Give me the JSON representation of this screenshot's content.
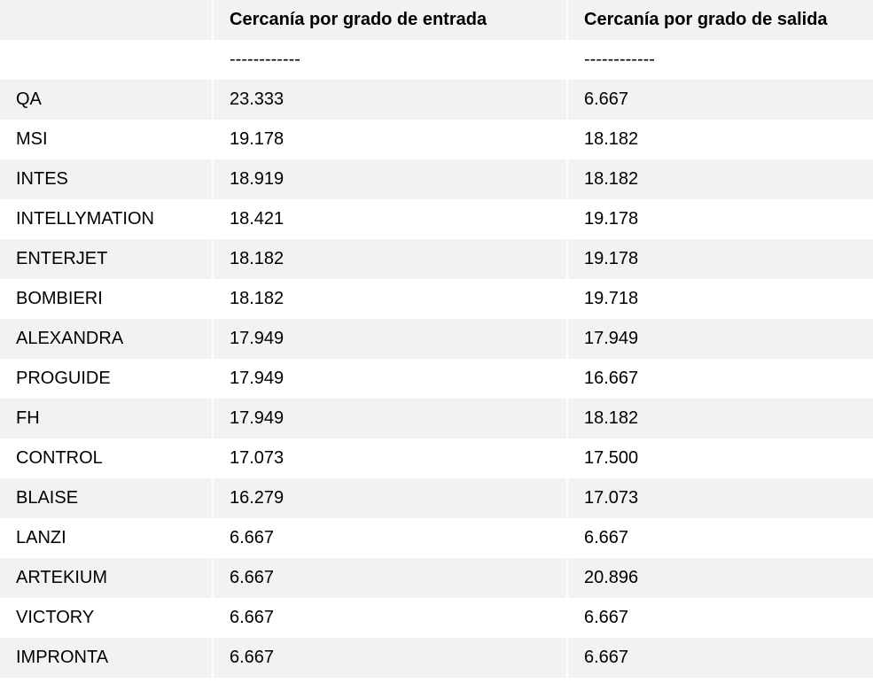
{
  "table": {
    "columns": [
      {
        "label": ""
      },
      {
        "label": "Cercanía por grado de entrada"
      },
      {
        "label": "Cercanía por grado de salida"
      }
    ],
    "separator_row": {
      "name": "",
      "entrada": "------------",
      "salida": "------------"
    },
    "rows": [
      {
        "name": "QA",
        "entrada": "23.333",
        "salida": "6.667"
      },
      {
        "name": "MSI",
        "entrada": "19.178",
        "salida": "18.182"
      },
      {
        "name": "INTES",
        "entrada": "18.919",
        "salida": "18.182"
      },
      {
        "name": "INTELLYMATION",
        "entrada": "18.421",
        "salida": "19.178"
      },
      {
        "name": "ENTERJET",
        "entrada": "18.182",
        "salida": "19.178"
      },
      {
        "name": "BOMBIERI",
        "entrada": "18.182",
        "salida": "19.718"
      },
      {
        "name": "ALEXANDRA",
        "entrada": "17.949",
        "salida": "17.949"
      },
      {
        "name": "PROGUIDE",
        "entrada": "17.949",
        "salida": "16.667"
      },
      {
        "name": "FH",
        "entrada": "17.949",
        "salida": "18.182"
      },
      {
        "name": "CONTROL",
        "entrada": "17.073",
        "salida": "17.500"
      },
      {
        "name": "BLAISE",
        "entrada": "16.279",
        "salida": "17.073"
      },
      {
        "name": "LANZI",
        "entrada": "6.667",
        "salida": "6.667"
      },
      {
        "name": "ARTEKIUM",
        "entrada": "6.667",
        "salida": "20.896"
      },
      {
        "name": "VICTORY",
        "entrada": "6.667",
        "salida": "6.667"
      },
      {
        "name": "IMPRONTA",
        "entrada": "6.667",
        "salida": "6.667"
      }
    ],
    "colors": {
      "stripe": "#f2f2f2",
      "background": "#ffffff",
      "text": "#000000"
    }
  },
  "chart_data": {
    "type": "table",
    "title": "",
    "columns": [
      "",
      "Cercanía por grado de entrada",
      "Cercanía por grado de salida"
    ],
    "rows": [
      [
        "QA",
        23.333,
        6.667
      ],
      [
        "MSI",
        19.178,
        18.182
      ],
      [
        "INTES",
        18.919,
        18.182
      ],
      [
        "INTELLYMATION",
        18.421,
        19.178
      ],
      [
        "ENTERJET",
        18.182,
        19.178
      ],
      [
        "BOMBIERI",
        18.182,
        19.718
      ],
      [
        "ALEXANDRA",
        17.949,
        17.949
      ],
      [
        "PROGUIDE",
        17.949,
        16.667
      ],
      [
        "FH",
        17.949,
        18.182
      ],
      [
        "CONTROL",
        17.073,
        17.5
      ],
      [
        "BLAISE",
        16.279,
        17.073
      ],
      [
        "LANZI",
        6.667,
        6.667
      ],
      [
        "ARTEKIUM",
        6.667,
        20.896
      ],
      [
        "VICTORY",
        6.667,
        6.667
      ],
      [
        "IMPRONTA",
        6.667,
        6.667
      ]
    ],
    "layout": {
      "striped": true,
      "stripe_color": "#f2f2f2",
      "header_bold": true
    }
  }
}
